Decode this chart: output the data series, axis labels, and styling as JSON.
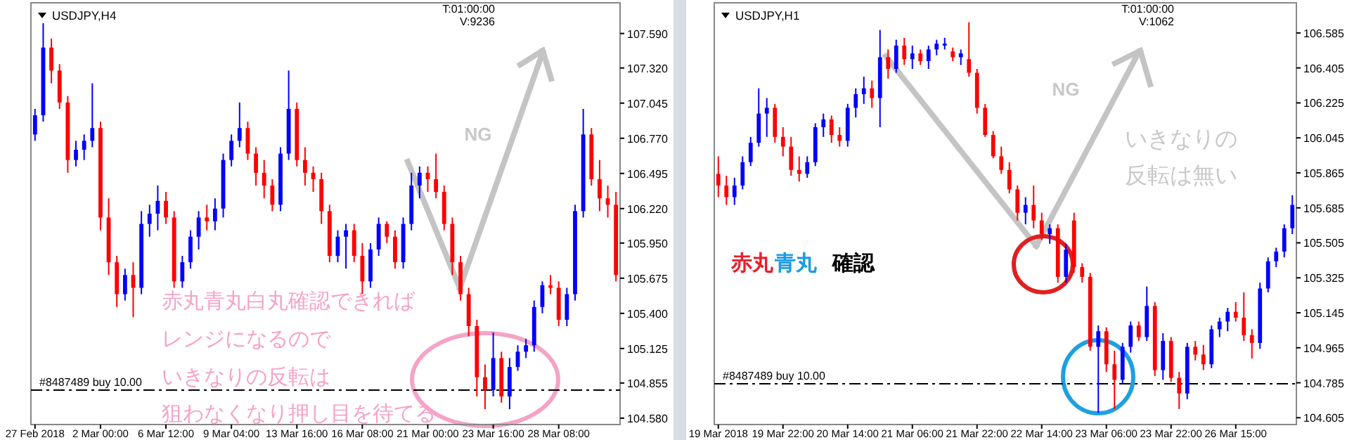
{
  "chart_data": [
    {
      "type": "candlestick",
      "title": "USDJPY,H4",
      "categories": [
        "27 Feb 2018",
        null,
        null,
        null,
        null,
        null,
        null,
        null,
        "2 Mar 00:00",
        null,
        null,
        null,
        null,
        null,
        null,
        null,
        "6 Mar 12:00",
        null,
        null,
        null,
        null,
        null,
        null,
        null,
        "9 Mar 04:00",
        null,
        null,
        null,
        null,
        null,
        null,
        null,
        "13 Mar 16:00",
        null,
        null,
        null,
        null,
        null,
        null,
        null,
        "16 Mar 08:00",
        null,
        null,
        null,
        null,
        null,
        null,
        null,
        "21 Mar 00:00",
        null,
        null,
        null,
        null,
        null,
        null,
        null,
        "23 Mar 16:00",
        null,
        null,
        null,
        null,
        null,
        null,
        null,
        "28 Mar 08:00",
        null,
        null,
        null,
        null,
        null,
        null,
        null
      ],
      "ohlc": [
        [
          106.8,
          107.0,
          106.75,
          106.95
        ],
        [
          106.95,
          107.67,
          106.9,
          107.48
        ],
        [
          107.48,
          107.55,
          107.2,
          107.3
        ],
        [
          107.3,
          107.35,
          107.0,
          107.05
        ],
        [
          107.05,
          107.1,
          106.5,
          106.6
        ],
        [
          106.6,
          106.75,
          106.55,
          106.68
        ],
        [
          106.68,
          106.8,
          106.6,
          106.75
        ],
        [
          106.75,
          107.2,
          106.7,
          106.85
        ],
        [
          106.85,
          106.9,
          106.05,
          106.15
        ],
        [
          106.15,
          106.3,
          105.7,
          105.8
        ],
        [
          105.8,
          105.85,
          105.45,
          105.55
        ],
        [
          105.55,
          105.75,
          105.5,
          105.7
        ],
        [
          105.7,
          105.8,
          105.37,
          105.6
        ],
        [
          105.6,
          106.2,
          105.55,
          106.1
        ],
        [
          106.1,
          106.25,
          106.0,
          106.18
        ],
        [
          106.18,
          106.4,
          106.05,
          106.28
        ],
        [
          106.28,
          106.35,
          106.1,
          106.15
        ],
        [
          106.15,
          106.2,
          105.6,
          105.65
        ],
        [
          105.65,
          105.85,
          105.6,
          105.8
        ],
        [
          105.8,
          106.05,
          105.75,
          106.0
        ],
        [
          106.0,
          106.2,
          105.9,
          106.15
        ],
        [
          106.15,
          106.25,
          106.05,
          106.12
        ],
        [
          106.12,
          106.3,
          106.05,
          106.22
        ],
        [
          106.22,
          106.65,
          106.15,
          106.6
        ],
        [
          106.6,
          106.8,
          106.55,
          106.75
        ],
        [
          106.75,
          107.05,
          106.7,
          106.85
        ],
        [
          106.85,
          106.9,
          106.6,
          106.65
        ],
        [
          106.65,
          106.7,
          106.4,
          106.5
        ],
        [
          106.5,
          106.6,
          106.3,
          106.4
        ],
        [
          106.4,
          106.45,
          106.2,
          106.25
        ],
        [
          106.25,
          106.7,
          106.2,
          106.65
        ],
        [
          106.65,
          107.3,
          106.6,
          107.0
        ],
        [
          107.0,
          107.05,
          106.55,
          106.6
        ],
        [
          106.6,
          106.7,
          106.4,
          106.5
        ],
        [
          106.5,
          106.55,
          106.35,
          106.45
        ],
        [
          106.45,
          106.5,
          106.1,
          106.2
        ],
        [
          106.2,
          106.25,
          105.8,
          105.85
        ],
        [
          105.85,
          106.05,
          105.8,
          106.0
        ],
        [
          106.0,
          106.1,
          105.75,
          106.05
        ],
        [
          106.05,
          106.1,
          105.8,
          105.85
        ],
        [
          105.85,
          105.95,
          105.55,
          105.65
        ],
        [
          105.65,
          105.95,
          105.6,
          105.9
        ],
        [
          105.9,
          106.15,
          105.85,
          106.1
        ],
        [
          106.1,
          106.12,
          105.95,
          106.0
        ],
        [
          106.0,
          106.05,
          105.75,
          105.8
        ],
        [
          105.8,
          106.15,
          105.75,
          106.1
        ],
        [
          106.1,
          106.5,
          106.05,
          106.4
        ],
        [
          106.4,
          106.55,
          106.3,
          106.5
        ],
        [
          106.5,
          106.55,
          106.35,
          106.45
        ],
        [
          106.45,
          106.65,
          106.3,
          106.35
        ],
        [
          106.35,
          106.4,
          106.05,
          106.1
        ],
        [
          106.1,
          106.15,
          105.7,
          105.8
        ],
        [
          105.8,
          105.85,
          105.5,
          105.55
        ],
        [
          105.55,
          105.6,
          105.22,
          105.3
        ],
        [
          105.3,
          105.35,
          104.75,
          104.9
        ],
        [
          104.9,
          105.0,
          104.65,
          104.8
        ],
        [
          104.8,
          105.25,
          104.75,
          105.05
        ],
        [
          105.05,
          105.1,
          104.7,
          104.75
        ],
        [
          104.75,
          105.05,
          104.65,
          104.98
        ],
        [
          104.98,
          105.15,
          104.95,
          105.1
        ],
        [
          105.1,
          105.2,
          105.05,
          105.15
        ],
        [
          105.15,
          105.5,
          105.1,
          105.45
        ],
        [
          105.45,
          105.65,
          105.4,
          105.62
        ],
        [
          105.62,
          105.7,
          105.55,
          105.6
        ],
        [
          105.6,
          105.65,
          105.3,
          105.35
        ],
        [
          105.35,
          105.6,
          105.3,
          105.55
        ],
        [
          105.55,
          106.25,
          105.5,
          106.2
        ],
        [
          106.2,
          107.0,
          106.15,
          106.8
        ],
        [
          106.8,
          106.85,
          106.4,
          106.45
        ],
        [
          106.45,
          106.6,
          106.2,
          106.3
        ],
        [
          106.3,
          106.4,
          106.15,
          106.25
        ],
        [
          106.25,
          106.35,
          105.65,
          105.7
        ]
      ],
      "colors": [
        "#0000ff",
        "#0000ff",
        "#ff0000",
        "#ff0000",
        "#ff0000",
        "#0000ff",
        "#0000ff",
        "#0000ff",
        "#ff0000",
        "#ff0000",
        "#ff0000",
        "#0000ff",
        "#ff0000",
        "#0000ff",
        "#0000ff",
        "#0000ff",
        "#ff0000",
        "#ff0000",
        "#0000ff",
        "#0000ff",
        "#0000ff",
        "#ff0000",
        "#0000ff",
        "#0000ff",
        "#0000ff",
        "#0000ff",
        "#ff0000",
        "#ff0000",
        "#ff0000",
        "#ff0000",
        "#0000ff",
        "#0000ff",
        "#ff0000",
        "#ff0000",
        "#ff0000",
        "#ff0000",
        "#ff0000",
        "#0000ff",
        "#0000ff",
        "#ff0000",
        "#ff0000",
        "#0000ff",
        "#0000ff",
        "#ff0000",
        "#ff0000",
        "#0000ff",
        "#0000ff",
        "#0000ff",
        "#ff0000",
        "#ff0000",
        "#ff0000",
        "#ff0000",
        "#ff0000",
        "#ff0000",
        "#ff0000",
        "#ff0000",
        "#0000ff",
        "#ff0000",
        "#0000ff",
        "#0000ff",
        "#0000ff",
        "#0000ff",
        "#0000ff",
        "#ff0000",
        "#ff0000",
        "#0000ff",
        "#0000ff",
        "#0000ff",
        "#ff0000",
        "#ff0000",
        "#ff0000",
        "#ff0000"
      ],
      "ylim": [
        104.53,
        107.83
      ],
      "yticks": [
        {
          "value": 107.59,
          "label": "107.590"
        },
        {
          "value": 107.32,
          "label": "107.320"
        },
        107.045,
        {
          "value": 106.77,
          "label": "106.770"
        },
        106.495,
        {
          "value": 106.22,
          "label": "106.220"
        },
        {
          "value": 105.95,
          "label": "105.950"
        },
        105.675,
        {
          "value": 105.4,
          "label": "105.400"
        },
        105.125,
        104.855,
        {
          "value": 104.58,
          "label": "104.580"
        }
      ],
      "ref_lines": [
        {
          "axis": "y",
          "value": 104.8,
          "label": "#8487489 buy 10.00",
          "line_style": "dashed",
          "color": "#000000"
        }
      ],
      "annotations": [
        "T:01:00:00",
        "V:9236",
        "NG",
        "赤丸青丸白丸確認できれば",
        "レンジになるので",
        "いきなりの反転は",
        "狙わなくなり押し目を待てる"
      ]
    },
    {
      "type": "candlestick",
      "title": "USDJPY,H1",
      "categories": [
        "19 Mar 2018",
        null,
        null,
        null,
        null,
        null,
        null,
        null,
        "19 Mar 22:00",
        null,
        null,
        null,
        null,
        null,
        null,
        null,
        "20 Mar 14:00",
        null,
        null,
        null,
        null,
        null,
        null,
        null,
        "21 Mar 06:00",
        null,
        null,
        null,
        null,
        null,
        null,
        null,
        "21 Mar 22:00",
        null,
        null,
        null,
        null,
        null,
        null,
        null,
        "22 Mar 14:00",
        null,
        null,
        null,
        null,
        null,
        null,
        null,
        "23 Mar 06:00",
        null,
        null,
        null,
        null,
        null,
        null,
        null,
        "23 Mar 22:00",
        null,
        null,
        null,
        null,
        null,
        null,
        null,
        "26 Mar 15:00",
        null,
        null,
        null,
        null,
        null,
        null,
        null
      ],
      "ohlc": [
        [
          105.86,
          105.95,
          105.74,
          105.8
        ],
        [
          105.8,
          105.85,
          105.7,
          105.74
        ],
        [
          105.74,
          105.84,
          105.7,
          105.8
        ],
        [
          105.8,
          105.95,
          105.78,
          105.92
        ],
        [
          105.92,
          106.05,
          105.9,
          106.02
        ],
        [
          106.02,
          106.3,
          106.0,
          106.17
        ],
        [
          106.17,
          106.25,
          106.05,
          106.2
        ],
        [
          106.2,
          106.22,
          106.02,
          106.05
        ],
        [
          106.05,
          106.1,
          105.95,
          106.0
        ],
        [
          106.0,
          106.05,
          105.85,
          105.88
        ],
        [
          105.88,
          105.95,
          105.82,
          105.86
        ],
        [
          105.86,
          105.95,
          105.84,
          105.92
        ],
        [
          105.92,
          106.12,
          105.9,
          106.1
        ],
        [
          106.1,
          106.17,
          106.05,
          106.14
        ],
        [
          106.14,
          106.16,
          106.02,
          106.06
        ],
        [
          106.06,
          106.1,
          106.0,
          106.03
        ],
        [
          106.03,
          106.22,
          106.0,
          106.2
        ],
        [
          106.2,
          106.3,
          106.15,
          106.27
        ],
        [
          106.27,
          106.36,
          106.22,
          106.3
        ],
        [
          106.3,
          106.34,
          106.2,
          106.25
        ],
        [
          106.25,
          106.6,
          106.1,
          106.46
        ],
        [
          106.46,
          106.5,
          106.35,
          106.4
        ],
        [
          106.4,
          106.55,
          106.38,
          106.52
        ],
        [
          106.52,
          106.56,
          106.42,
          106.45
        ],
        [
          106.45,
          106.52,
          106.4,
          106.48
        ],
        [
          106.48,
          106.5,
          106.42,
          106.44
        ],
        [
          106.44,
          106.52,
          106.4,
          106.5
        ],
        [
          106.5,
          106.55,
          106.47,
          106.53
        ],
        [
          106.52,
          106.56,
          106.5,
          106.53
        ],
        [
          106.49,
          106.51,
          106.44,
          106.46
        ],
        [
          106.46,
          106.5,
          106.42,
          106.48
        ],
        [
          106.45,
          106.64,
          106.36,
          106.38
        ],
        [
          106.38,
          106.4,
          106.17,
          106.2
        ],
        [
          106.2,
          106.22,
          106.05,
          106.06
        ],
        [
          106.06,
          106.08,
          105.94,
          105.95
        ],
        [
          105.95,
          106.0,
          105.86,
          105.88
        ],
        [
          105.88,
          105.92,
          105.76,
          105.78
        ],
        [
          105.78,
          105.8,
          105.62,
          105.66
        ],
        [
          105.66,
          105.74,
          105.6,
          105.7
        ],
        [
          105.7,
          105.8,
          105.58,
          105.62
        ],
        [
          105.62,
          105.66,
          105.52,
          105.55
        ],
        [
          105.55,
          105.6,
          105.5,
          105.58
        ],
        [
          105.58,
          105.6,
          105.3,
          105.33
        ],
        [
          105.33,
          105.5,
          105.3,
          105.47
        ],
        [
          105.62,
          105.66,
          105.35,
          105.38
        ],
        [
          105.38,
          105.4,
          105.3,
          105.33
        ],
        [
          105.33,
          105.35,
          104.95,
          104.97
        ],
        [
          104.97,
          105.08,
          104.63,
          105.05
        ],
        [
          105.05,
          105.07,
          104.84,
          104.88
        ],
        [
          104.88,
          104.95,
          104.65,
          104.8
        ],
        [
          104.8,
          104.99,
          104.78,
          104.97
        ],
        [
          104.97,
          105.1,
          104.94,
          105.08
        ],
        [
          105.08,
          105.1,
          105.0,
          105.02
        ],
        [
          105.02,
          105.28,
          105.0,
          105.18
        ],
        [
          105.18,
          105.2,
          104.82,
          104.85
        ],
        [
          104.85,
          105.04,
          104.8,
          105.0
        ],
        [
          105.0,
          105.02,
          104.79,
          104.81
        ],
        [
          104.81,
          104.84,
          104.65,
          104.73
        ],
        [
          104.73,
          104.99,
          104.7,
          104.97
        ],
        [
          104.97,
          105.0,
          104.9,
          104.93
        ],
        [
          104.93,
          104.98,
          104.85,
          104.88
        ],
        [
          104.88,
          105.08,
          104.86,
          105.06
        ],
        [
          105.06,
          105.12,
          105.02,
          105.1
        ],
        [
          105.1,
          105.17,
          105.05,
          105.15
        ],
        [
          105.15,
          105.2,
          105.1,
          105.12
        ],
        [
          105.12,
          105.25,
          105.0,
          105.03
        ],
        [
          105.03,
          105.06,
          104.91,
          104.99
        ],
        [
          104.99,
          105.3,
          104.96,
          105.27
        ],
        [
          105.27,
          105.43,
          105.25,
          105.41
        ],
        [
          105.41,
          105.48,
          105.38,
          105.46
        ],
        [
          105.46,
          105.6,
          105.43,
          105.58
        ],
        [
          105.58,
          105.75,
          105.55,
          105.7
        ]
      ],
      "colors": [
        "#ff0000",
        "#ff0000",
        "#0000ff",
        "#0000ff",
        "#0000ff",
        "#0000ff",
        "#0000ff",
        "#ff0000",
        "#ff0000",
        "#ff0000",
        "#ff0000",
        "#0000ff",
        "#0000ff",
        "#0000ff",
        "#ff0000",
        "#ff0000",
        "#0000ff",
        "#0000ff",
        "#0000ff",
        "#ff0000",
        "#0000ff",
        "#ff0000",
        "#0000ff",
        "#ff0000",
        "#0000ff",
        "#ff0000",
        "#0000ff",
        "#0000ff",
        "#0000ff",
        "#ff0000",
        "#0000ff",
        "#ff0000",
        "#ff0000",
        "#ff0000",
        "#ff0000",
        "#ff0000",
        "#ff0000",
        "#ff0000",
        "#0000ff",
        "#ff0000",
        "#ff0000",
        "#0000ff",
        "#ff0000",
        "#0000ff",
        "#ff0000",
        "#ff0000",
        "#ff0000",
        "#0000ff",
        "#ff0000",
        "#ff0000",
        "#0000ff",
        "#0000ff",
        "#ff0000",
        "#0000ff",
        "#ff0000",
        "#0000ff",
        "#ff0000",
        "#ff0000",
        "#0000ff",
        "#ff0000",
        "#ff0000",
        "#0000ff",
        "#0000ff",
        "#0000ff",
        "#ff0000",
        "#ff0000",
        "#ff0000",
        "#0000ff",
        "#0000ff",
        "#0000ff",
        "#0000ff",
        "#0000ff"
      ],
      "ylim": [
        104.57,
        106.74
      ],
      "yticks": [
        106.585,
        106.405,
        106.225,
        106.045,
        105.865,
        105.685,
        105.505,
        105.325,
        105.145,
        104.965,
        104.785,
        104.605
      ],
      "ref_lines": [
        {
          "axis": "y",
          "value": 104.78,
          "label": "#8487489 buy 10.00",
          "line_style": "dashed",
          "color": "#000000"
        }
      ],
      "annotations": [
        "T:01:00:00",
        "V:1062",
        "NG",
        "いきなりの",
        "反転は無い",
        "赤丸",
        "青丸",
        "確認"
      ]
    }
  ]
}
